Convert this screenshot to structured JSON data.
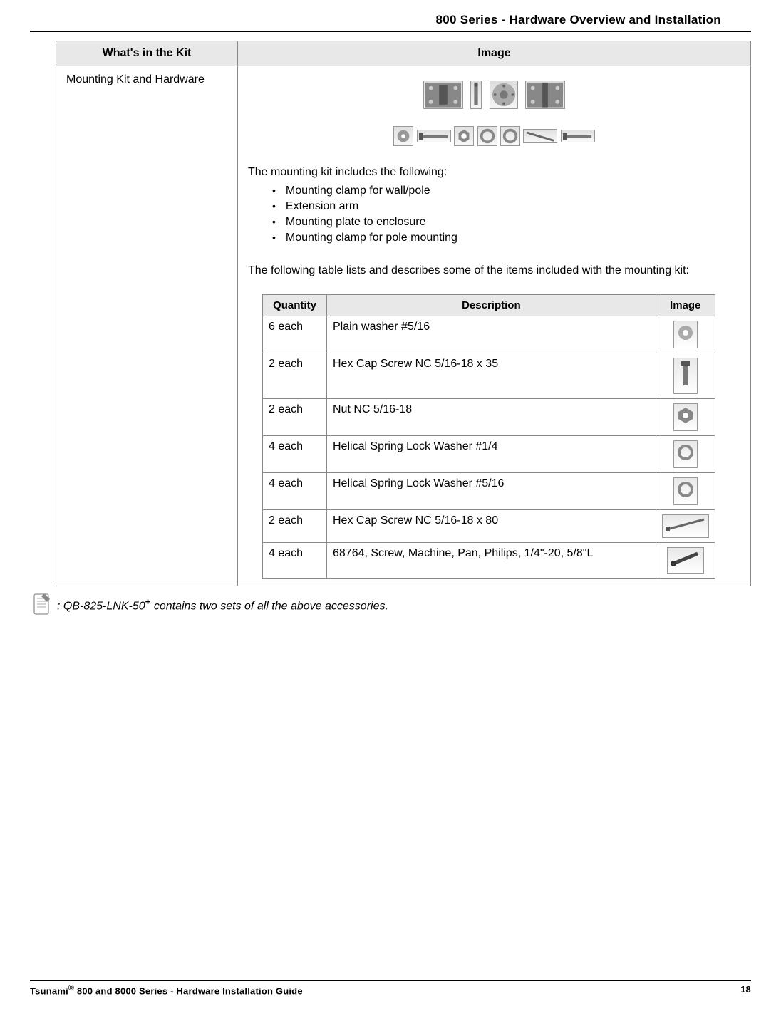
{
  "header": {
    "title": "800 Series - Hardware Overview and Installation"
  },
  "outer_table": {
    "headers": {
      "col1": "What's in the Kit",
      "col2": "Image"
    },
    "row": {
      "kit_label": "Mounting Kit and Hardware",
      "intro": "The mounting kit includes the following:",
      "bullets": [
        "Mounting clamp for wall/pole",
        "Extension arm",
        "Mounting plate to enclosure",
        "Mounting clamp for pole mounting"
      ],
      "table_intro": "The following table lists and describes some of the items included with the mounting kit:",
      "inner_table": {
        "headers": {
          "qty": "Quantity",
          "desc": "Description",
          "img": "Image"
        },
        "rows": [
          {
            "qty": "6 each",
            "desc": "Plain washer #5/16",
            "icon": "washer"
          },
          {
            "qty": "2 each",
            "desc": "Hex Cap Screw NC 5/16-18 x 35",
            "icon": "short-screw"
          },
          {
            "qty": "2 each",
            "desc": "Nut NC 5/16-18",
            "icon": "nut"
          },
          {
            "qty": "4 each",
            "desc": "Helical Spring Lock Washer #1/4",
            "icon": "lock-washer"
          },
          {
            "qty": "4 each",
            "desc": "Helical Spring Lock Washer #5/16",
            "icon": "lock-washer"
          },
          {
            "qty": "2 each",
            "desc": "Hex Cap Screw NC 5/16-18 x 80",
            "icon": "long-screw"
          },
          {
            "qty": "4 each",
            "desc": "68764, Screw, Machine, Pan, Philips, 1/4\"-20, 5/8\"L",
            "icon": "machine-screw"
          }
        ]
      }
    }
  },
  "note": {
    "prefix": ": QB-825-LNK-50",
    "plus": "+",
    "suffix": " contains two sets of all the above accessories."
  },
  "footer": {
    "prefix": "Tsunami",
    "reg": "®",
    "suffix": " 800 and 8000 Series - Hardware Installation Guide",
    "page": "18"
  }
}
